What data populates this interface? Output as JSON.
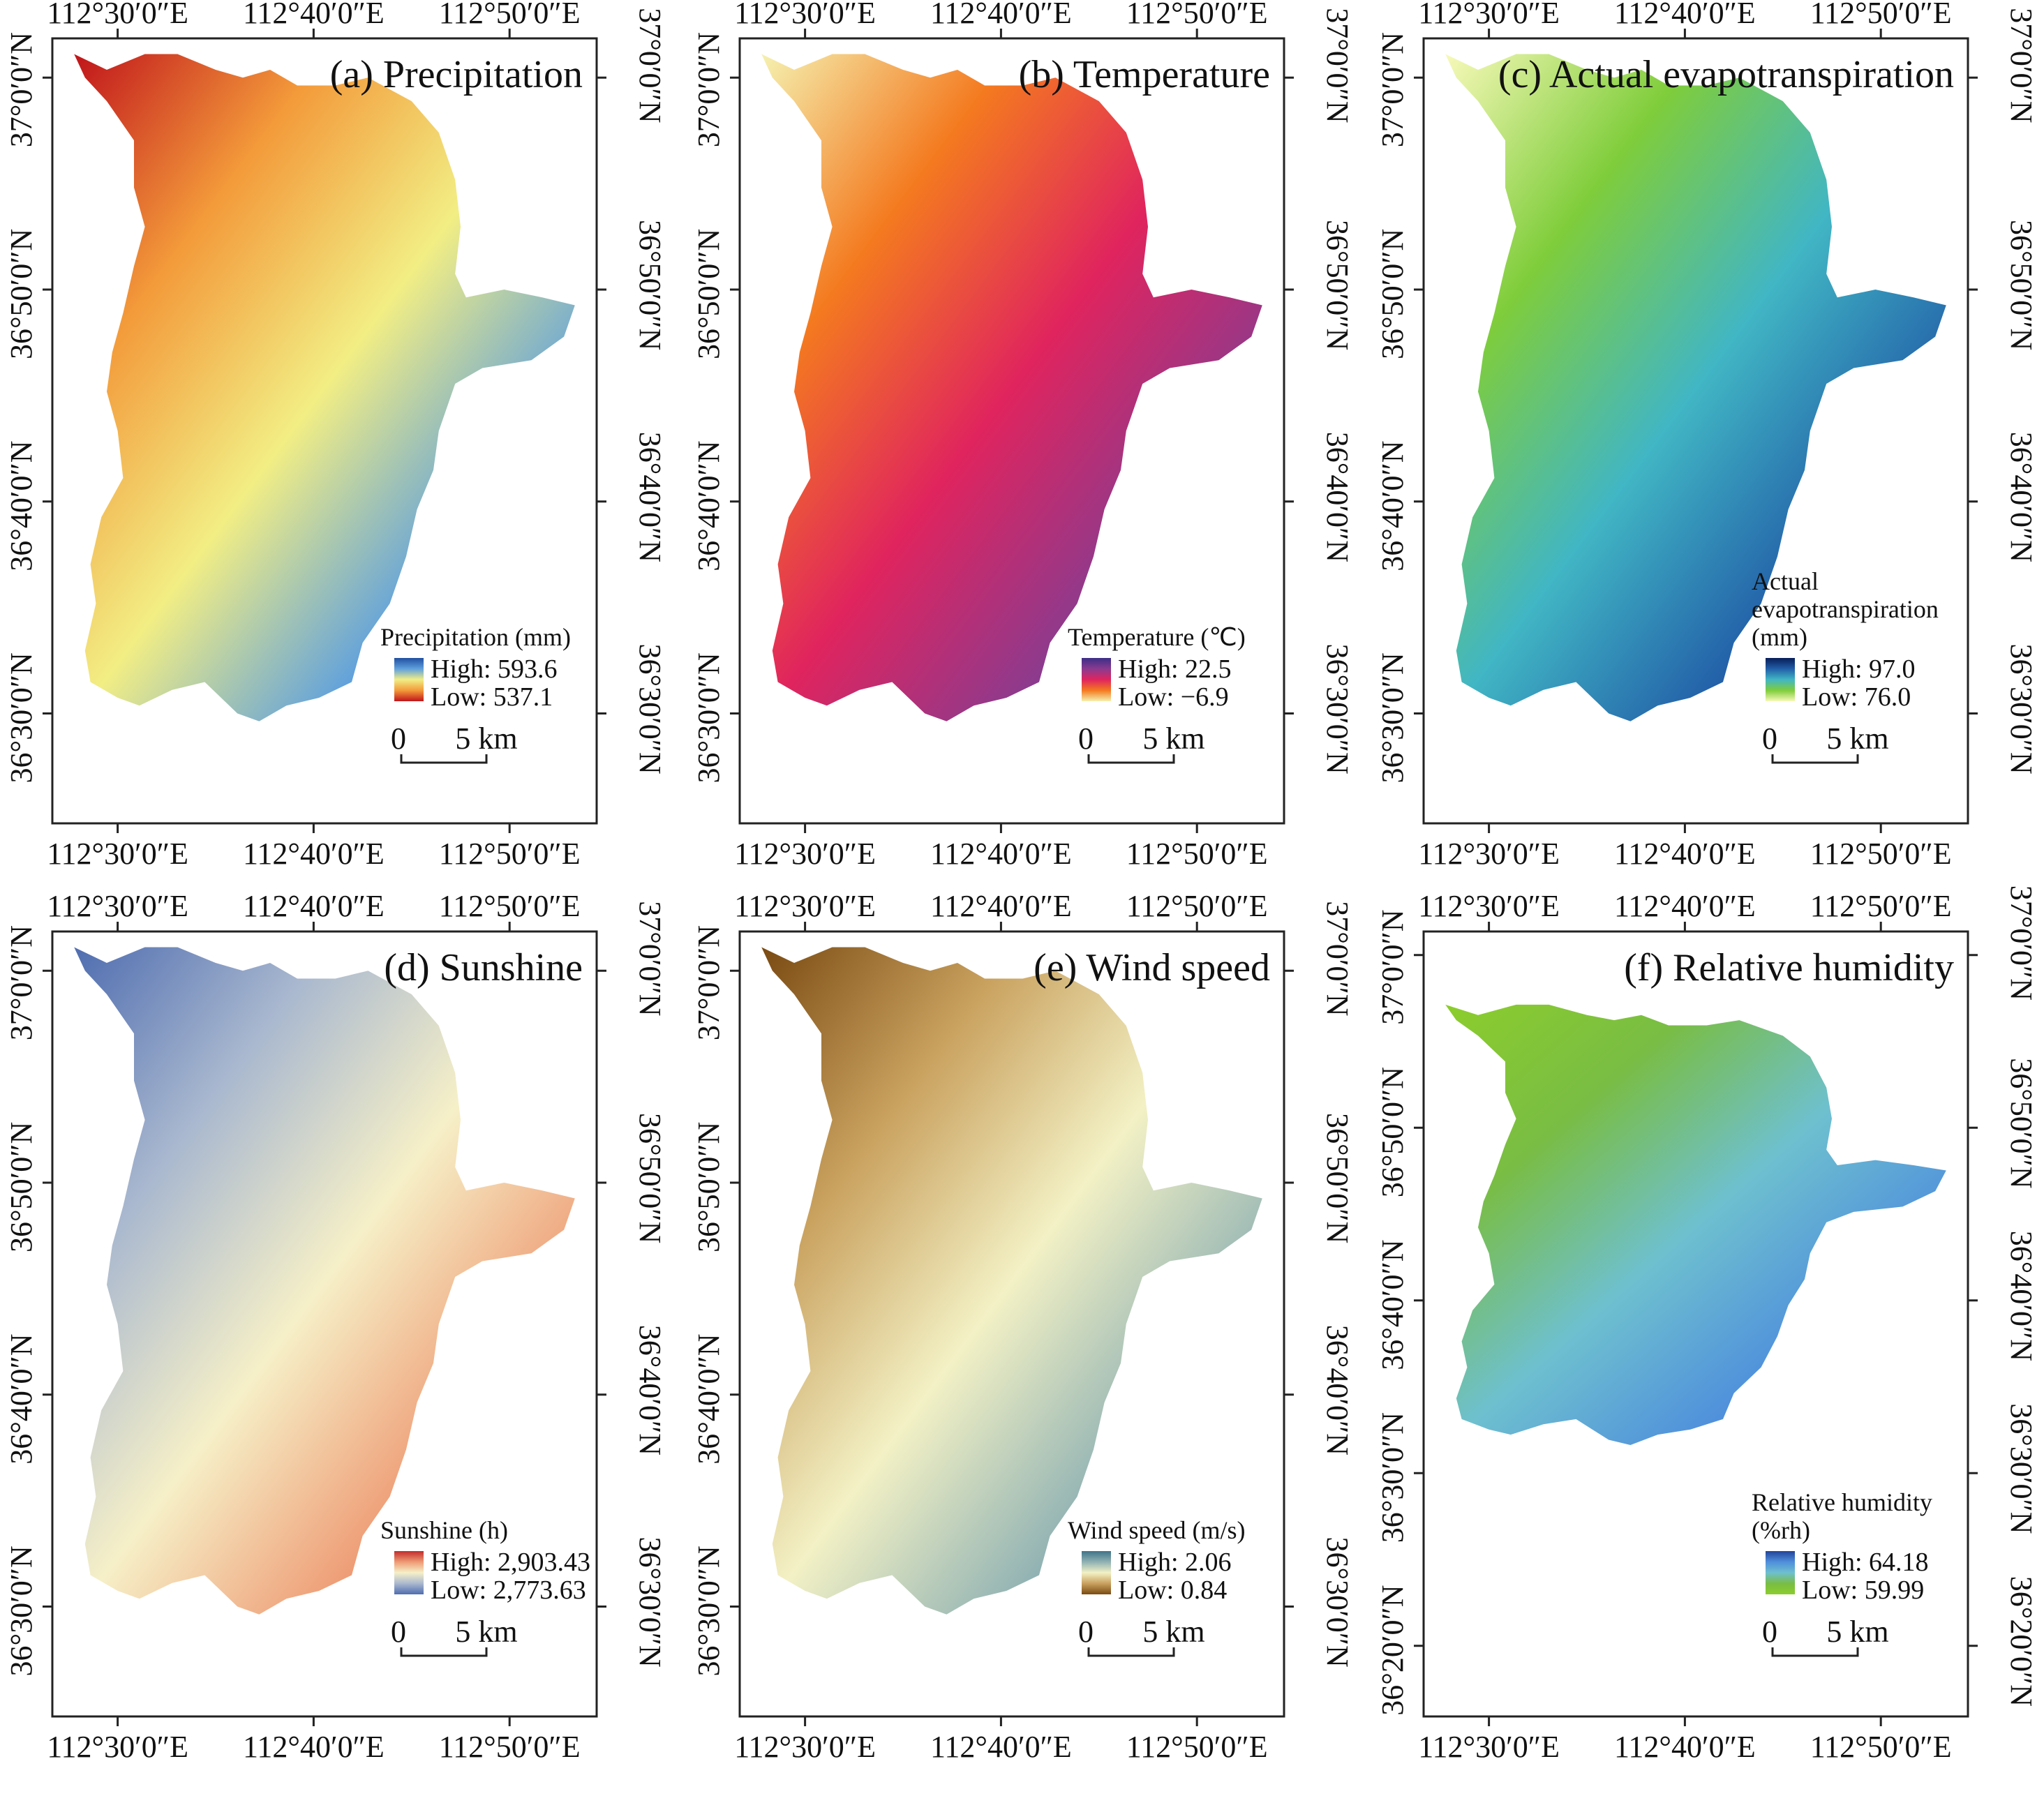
{
  "figure": {
    "lon_labels": [
      "112°30′0″E",
      "112°40′0″E",
      "112°50′0″E"
    ],
    "scale_bar": {
      "zero": "0",
      "distance": "5 km"
    },
    "panels": [
      {
        "id": "a",
        "title": "(a) Precipitation",
        "legend_title": [
          "Precipitation (mm)"
        ],
        "high": "High: 593.6",
        "low": "Low: 537.1",
        "ramp": [
          "#1f4fa0",
          "#5fa0dd",
          "#f2ee84",
          "#f39a3a",
          "#c0141b"
        ],
        "lat_labels": [
          "37°0′0″N",
          "36°50′0″N",
          "36°40′0″N",
          "36°30′0″N"
        ]
      },
      {
        "id": "b",
        "title": "(b) Temperature",
        "legend_title": [
          "Temperature (℃)"
        ],
        "high": "High: 22.5",
        "low": "Low: −6.9",
        "ramp": [
          "#3b2e86",
          "#8a3b8f",
          "#e0245e",
          "#f47a1f",
          "#f5f1b0"
        ],
        "lat_labels": [
          "37°0′0″N",
          "36°50′0″N",
          "36°40′0″N",
          "36°30′0″N"
        ]
      },
      {
        "id": "c",
        "title": "(c) Actual evapotranspiration",
        "legend_title": [
          "Actual",
          "evapotranspiration",
          "(mm)"
        ],
        "high": "High: 97.0",
        "low": "Low: 76.0",
        "ramp": [
          "#081d58",
          "#225ea8",
          "#41b6c4",
          "#7fcd3b",
          "#f7f9b9"
        ],
        "lat_labels": [
          "37°0′0″N",
          "36°50′0″N",
          "36°40′0″N",
          "36°30′0″N"
        ]
      },
      {
        "id": "d",
        "title": "(d) Sunshine",
        "legend_title": [
          "Sunshine (h)"
        ],
        "high": "High: 2,903.43",
        "low": "Low: 2,773.63",
        "ramp": [
          "#c22b2b",
          "#ee9b74",
          "#f6f0c8",
          "#a9b8cf",
          "#4f6db0"
        ],
        "lat_labels": [
          "37°0′0″N",
          "36°50′0″N",
          "36°40′0″N",
          "36°30′0″N"
        ]
      },
      {
        "id": "e",
        "title": "(e) Wind speed",
        "legend_title": [
          "Wind speed (m/s)"
        ],
        "high": "High: 2.06",
        "low": "Low: 0.84",
        "ramp": [
          "#3e7387",
          "#8fb1b3",
          "#f3f1c5",
          "#c9a15e",
          "#7a4a12"
        ],
        "lat_labels": [
          "37°0′0″N",
          "36°50′0″N",
          "36°40′0″N",
          "36°30′0″N"
        ]
      },
      {
        "id": "f",
        "title": "(f) Relative humidity",
        "legend_title": [
          "Relative humidity",
          "(%rh)"
        ],
        "high": "High: 64.18",
        "low": "Low: 59.99",
        "ramp": [
          "#22449a",
          "#4f8fdc",
          "#6ec0cf",
          "#79bd44",
          "#8ccd2c"
        ],
        "lat_labels": [
          "37°0′0″N",
          "36°50′0″N",
          "36°40′0″N",
          "36°30′0″N",
          "36°20′0″N"
        ]
      }
    ]
  }
}
